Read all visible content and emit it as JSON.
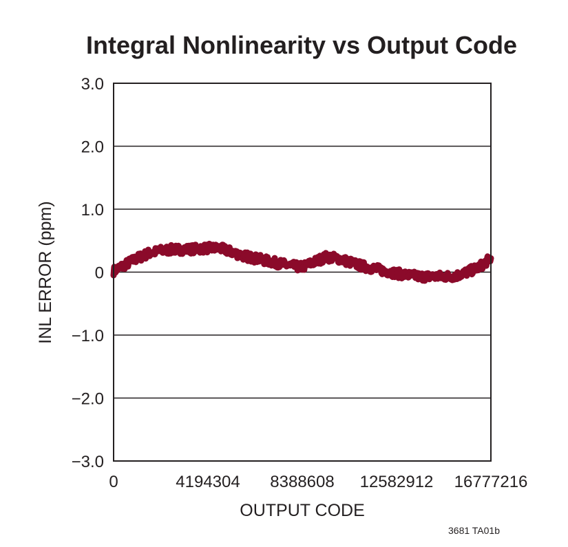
{
  "chart_data": {
    "type": "line",
    "title": "Integral Nonlinearity vs Output Code",
    "xlabel": "OUTPUT CODE",
    "ylabel": "INL ERROR (ppm)",
    "xlim": [
      0,
      16777216
    ],
    "ylim": [
      -3.0,
      3.0
    ],
    "xticks": [
      0,
      4194304,
      8388608,
      12582912,
      16777216
    ],
    "xtick_labels": [
      "0",
      "4194304",
      "8388608",
      "12582912",
      "16777216"
    ],
    "yticks": [
      3.0,
      2.0,
      1.0,
      0,
      -1.0,
      -2.0,
      -3.0
    ],
    "ytick_labels": [
      "3.0",
      "2.0",
      "1.0",
      "0",
      "−1.0",
      "−2.0",
      "−3.0"
    ],
    "grid": "horizontal",
    "legend": "none",
    "line_color": "#8b0a2a",
    "series": [
      {
        "x": [
          0,
          524288,
          1048576,
          1572864,
          2097152,
          2621440,
          3145728,
          3670016,
          4194304,
          4718592,
          5242880,
          5767168,
          6291456,
          6815744,
          7340032,
          7864320,
          8388608,
          8912896,
          9437184,
          9961472,
          10485760,
          11010048,
          11534336,
          12058624,
          12582912,
          13107200,
          13631488,
          14155776,
          14680064,
          15204352,
          15728640,
          16252928,
          16777216
        ],
        "y": [
          0.02,
          0.12,
          0.22,
          0.3,
          0.34,
          0.36,
          0.36,
          0.37,
          0.38,
          0.38,
          0.32,
          0.26,
          0.22,
          0.18,
          0.14,
          0.1,
          0.08,
          0.16,
          0.24,
          0.22,
          0.16,
          0.1,
          0.06,
          0.02,
          -0.02,
          -0.05,
          -0.07,
          -0.07,
          -0.07,
          -0.06,
          0.0,
          0.08,
          0.22
        ]
      }
    ]
  },
  "footnote": "3681 TA01b"
}
